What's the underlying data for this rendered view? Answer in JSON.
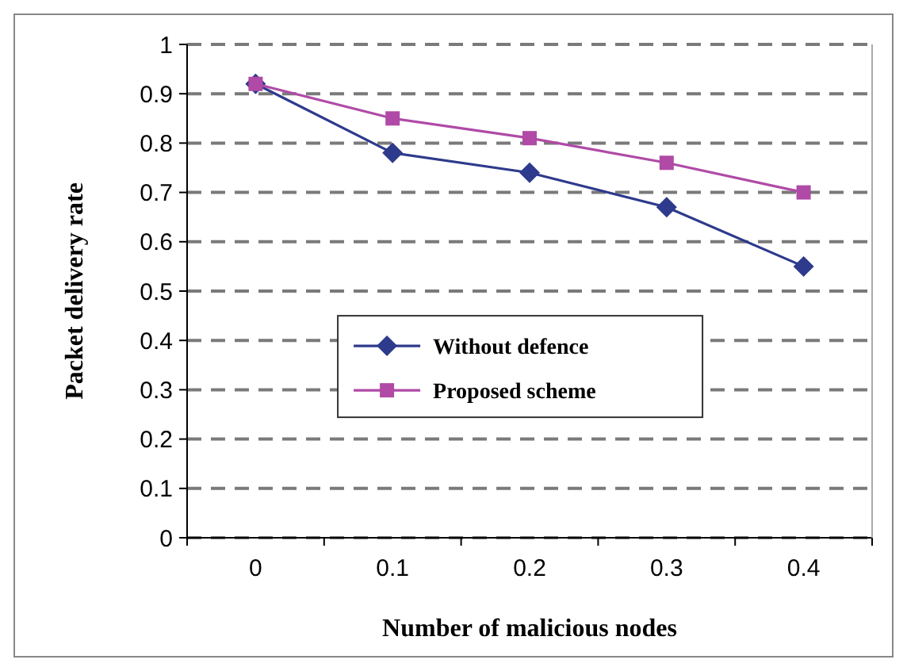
{
  "chart_data": {
    "type": "line",
    "xlabel": "Number of malicious nodes",
    "ylabel": "Packet delivery rate",
    "categories": [
      "0",
      "0.1",
      "0.2",
      "0.3",
      "0.4"
    ],
    "series": [
      {
        "name": "Without defence",
        "color": "#2e3a8c",
        "marker": "diamond",
        "values": [
          0.92,
          0.78,
          0.74,
          0.67,
          0.55
        ]
      },
      {
        "name": "Proposed scheme",
        "color": "#b04aa6",
        "marker": "square",
        "values": [
          0.92,
          0.85,
          0.81,
          0.76,
          0.7
        ]
      }
    ],
    "ylim": [
      0,
      1
    ],
    "yticks": [
      0,
      0.1,
      0.2,
      0.3,
      0.4,
      0.5,
      0.6,
      0.7,
      0.8,
      0.9,
      1
    ],
    "grid": "y",
    "legend": "center"
  }
}
